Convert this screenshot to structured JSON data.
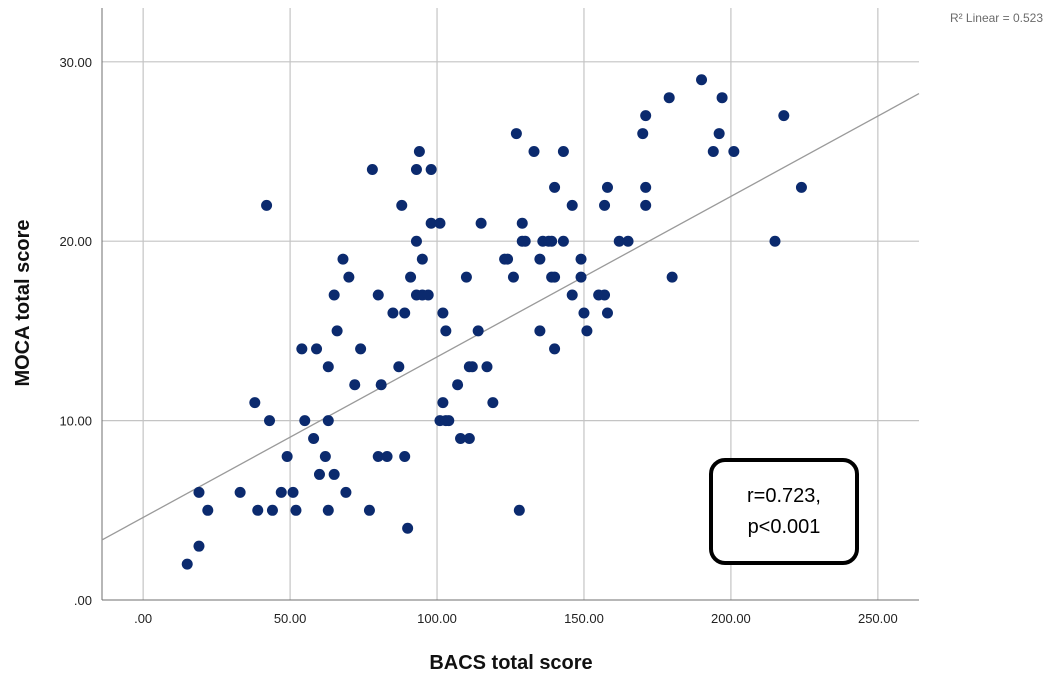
{
  "chart_data": {
    "type": "scatter",
    "title": "",
    "xlabel": "BACS total score",
    "ylabel": "MOCA total score",
    "xlim": [
      -14,
      264
    ],
    "ylim": [
      0,
      33
    ],
    "x_ticks": [
      0,
      50,
      100,
      150,
      200,
      250
    ],
    "x_tick_labels": [
      ".00",
      "50.00",
      "100.00",
      "150.00",
      "200.00",
      "250.00"
    ],
    "y_ticks": [
      0,
      10,
      20,
      30
    ],
    "y_tick_labels": [
      ".00",
      "10.00",
      "20.00",
      "30.00"
    ],
    "grid": true,
    "point_color": "#0b2a6e",
    "fit_line": {
      "label": "R² Linear = 0.523",
      "color": "#9a9a9a",
      "slope": 0.0895,
      "intercept": 4.6
    },
    "annotation": {
      "line1": "r=0.723,",
      "line2": "p<0.001"
    },
    "points": [
      {
        "x": 15,
        "y": 2
      },
      {
        "x": 19,
        "y": 3
      },
      {
        "x": 19,
        "y": 6
      },
      {
        "x": 22,
        "y": 5
      },
      {
        "x": 33,
        "y": 6
      },
      {
        "x": 39,
        "y": 5
      },
      {
        "x": 38,
        "y": 11
      },
      {
        "x": 42,
        "y": 22
      },
      {
        "x": 43,
        "y": 10
      },
      {
        "x": 44,
        "y": 5
      },
      {
        "x": 47,
        "y": 6
      },
      {
        "x": 49,
        "y": 8
      },
      {
        "x": 51,
        "y": 6
      },
      {
        "x": 52,
        "y": 5
      },
      {
        "x": 54,
        "y": 14
      },
      {
        "x": 55,
        "y": 10
      },
      {
        "x": 58,
        "y": 9
      },
      {
        "x": 59,
        "y": 14
      },
      {
        "x": 60,
        "y": 7
      },
      {
        "x": 62,
        "y": 8
      },
      {
        "x": 63,
        "y": 13
      },
      {
        "x": 63,
        "y": 10
      },
      {
        "x": 63,
        "y": 5
      },
      {
        "x": 65,
        "y": 17
      },
      {
        "x": 65,
        "y": 7
      },
      {
        "x": 66,
        "y": 15
      },
      {
        "x": 68,
        "y": 19
      },
      {
        "x": 69,
        "y": 6
      },
      {
        "x": 70,
        "y": 18
      },
      {
        "x": 72,
        "y": 12
      },
      {
        "x": 74,
        "y": 14
      },
      {
        "x": 77,
        "y": 5
      },
      {
        "x": 78,
        "y": 24
      },
      {
        "x": 80,
        "y": 17
      },
      {
        "x": 80,
        "y": 8
      },
      {
        "x": 81,
        "y": 12
      },
      {
        "x": 83,
        "y": 8
      },
      {
        "x": 85,
        "y": 16
      },
      {
        "x": 87,
        "y": 13
      },
      {
        "x": 88,
        "y": 22
      },
      {
        "x": 89,
        "y": 16
      },
      {
        "x": 89,
        "y": 8
      },
      {
        "x": 90,
        "y": 4
      },
      {
        "x": 91,
        "y": 18
      },
      {
        "x": 93,
        "y": 24
      },
      {
        "x": 93,
        "y": 20
      },
      {
        "x": 93,
        "y": 17
      },
      {
        "x": 94,
        "y": 25
      },
      {
        "x": 95,
        "y": 19
      },
      {
        "x": 95,
        "y": 17
      },
      {
        "x": 97,
        "y": 17
      },
      {
        "x": 98,
        "y": 24
      },
      {
        "x": 98,
        "y": 21
      },
      {
        "x": 101,
        "y": 21
      },
      {
        "x": 101,
        "y": 10
      },
      {
        "x": 102,
        "y": 16
      },
      {
        "x": 102,
        "y": 11
      },
      {
        "x": 103,
        "y": 15
      },
      {
        "x": 103,
        "y": 10
      },
      {
        "x": 104,
        "y": 10
      },
      {
        "x": 107,
        "y": 12
      },
      {
        "x": 108,
        "y": 9
      },
      {
        "x": 110,
        "y": 18
      },
      {
        "x": 111,
        "y": 13
      },
      {
        "x": 111,
        "y": 9
      },
      {
        "x": 112,
        "y": 13
      },
      {
        "x": 114,
        "y": 15
      },
      {
        "x": 115,
        "y": 21
      },
      {
        "x": 117,
        "y": 13
      },
      {
        "x": 119,
        "y": 11
      },
      {
        "x": 123,
        "y": 19
      },
      {
        "x": 124,
        "y": 19
      },
      {
        "x": 126,
        "y": 18
      },
      {
        "x": 127,
        "y": 26
      },
      {
        "x": 128,
        "y": 5
      },
      {
        "x": 129,
        "y": 21
      },
      {
        "x": 129,
        "y": 20
      },
      {
        "x": 130,
        "y": 20
      },
      {
        "x": 133,
        "y": 25
      },
      {
        "x": 135,
        "y": 19
      },
      {
        "x": 135,
        "y": 15
      },
      {
        "x": 136,
        "y": 20
      },
      {
        "x": 138,
        "y": 20
      },
      {
        "x": 139,
        "y": 20
      },
      {
        "x": 139,
        "y": 18
      },
      {
        "x": 140,
        "y": 23
      },
      {
        "x": 140,
        "y": 18
      },
      {
        "x": 140,
        "y": 14
      },
      {
        "x": 143,
        "y": 25
      },
      {
        "x": 143,
        "y": 20
      },
      {
        "x": 146,
        "y": 22
      },
      {
        "x": 146,
        "y": 17
      },
      {
        "x": 149,
        "y": 19
      },
      {
        "x": 149,
        "y": 18
      },
      {
        "x": 150,
        "y": 16
      },
      {
        "x": 151,
        "y": 15
      },
      {
        "x": 155,
        "y": 17
      },
      {
        "x": 157,
        "y": 22
      },
      {
        "x": 157,
        "y": 17
      },
      {
        "x": 158,
        "y": 23
      },
      {
        "x": 158,
        "y": 16
      },
      {
        "x": 162,
        "y": 20
      },
      {
        "x": 165,
        "y": 20
      },
      {
        "x": 170,
        "y": 26
      },
      {
        "x": 171,
        "y": 27
      },
      {
        "x": 171,
        "y": 23
      },
      {
        "x": 171,
        "y": 22
      },
      {
        "x": 179,
        "y": 28
      },
      {
        "x": 180,
        "y": 18
      },
      {
        "x": 190,
        "y": 29
      },
      {
        "x": 194,
        "y": 25
      },
      {
        "x": 196,
        "y": 26
      },
      {
        "x": 197,
        "y": 28
      },
      {
        "x": 201,
        "y": 25
      },
      {
        "x": 215,
        "y": 20
      },
      {
        "x": 218,
        "y": 27
      },
      {
        "x": 224,
        "y": 23
      }
    ]
  }
}
